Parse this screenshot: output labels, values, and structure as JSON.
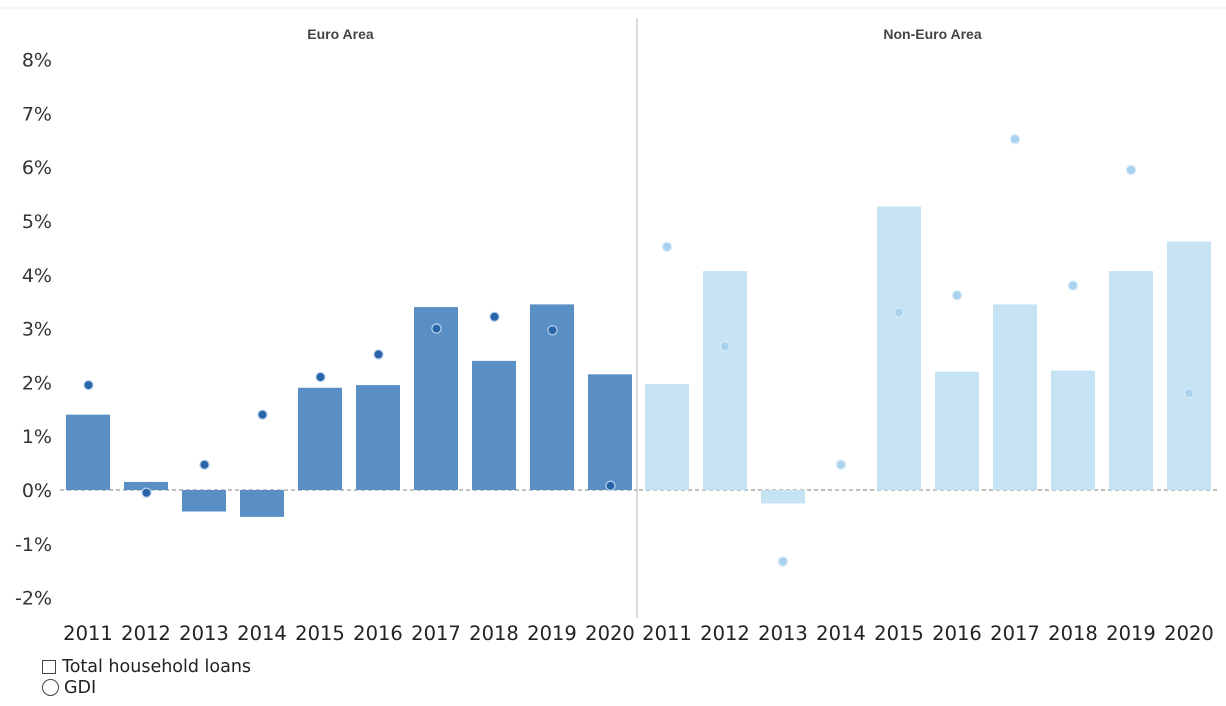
{
  "chart_data": {
    "type": "bar",
    "panels": [
      {
        "title": "Euro Area",
        "color": "#5a8fc6",
        "dot_color": "#2a64a9",
        "categories": [
          "2011",
          "2012",
          "2013",
          "2014",
          "2015",
          "2016",
          "2017",
          "2018",
          "2019",
          "2020"
        ],
        "series": [
          {
            "name": "Total household loans",
            "type": "bar",
            "values": [
              1.4,
              0.15,
              -0.4,
              -0.5,
              1.9,
              1.95,
              3.4,
              2.4,
              3.45,
              2.15
            ]
          },
          {
            "name": "GDI",
            "type": "scatter",
            "values": [
              1.95,
              -0.05,
              0.47,
              1.4,
              2.1,
              2.52,
              3.0,
              3.22,
              2.97,
              0.08
            ]
          }
        ]
      },
      {
        "title": "Non-Euro Area",
        "color": "#c6e3f4",
        "dot_color": "#a9d2ee",
        "categories": [
          "2011",
          "2012",
          "2013",
          "2014",
          "2015",
          "2016",
          "2017",
          "2018",
          "2019",
          "2020"
        ],
        "series": [
          {
            "name": "Total household loans",
            "type": "bar",
            "values": [
              1.97,
              4.07,
              -0.25,
              0.0,
              5.27,
              2.2,
              3.45,
              2.22,
              4.07,
              4.62
            ]
          },
          {
            "name": "GDI",
            "type": "scatter",
            "values": [
              4.52,
              2.67,
              -1.33,
              0.47,
              3.3,
              3.62,
              6.52,
              3.8,
              5.95,
              1.8
            ]
          }
        ]
      }
    ],
    "y_ticks": [
      "8%",
      "7%",
      "6%",
      "5%",
      "4%",
      "3%",
      "2%",
      "1%",
      "0%",
      "-1%",
      "-2%"
    ],
    "ylim": [
      -2,
      8
    ],
    "grid": false,
    "zero_line": "dashed",
    "legend": {
      "placement": "bottom-left",
      "items": [
        {
          "label": "Total household loans",
          "marker": "square"
        },
        {
          "label": "GDI",
          "marker": "circle"
        }
      ]
    }
  }
}
